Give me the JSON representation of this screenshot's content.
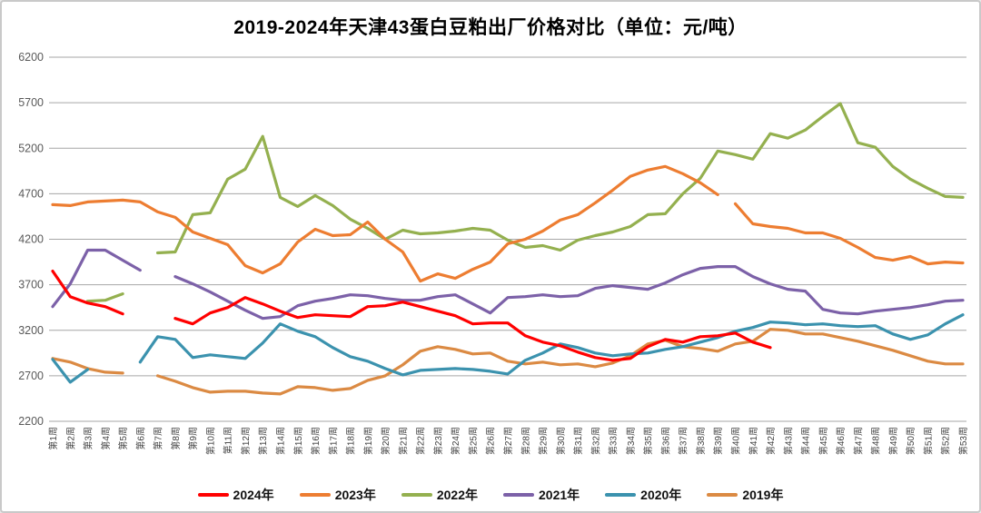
{
  "title": "2019-2024年天津43蛋白豆粕出厂价格对比（单位：元/吨）",
  "chart_data": {
    "type": "line",
    "title": "2019-2024年天津43蛋白豆粕出厂价格对比（单位：元/吨）",
    "unit": "元/吨",
    "grid": "horizontal",
    "legend_position": "bottom",
    "y_axis": {
      "min": 2200,
      "max": 6200,
      "tick_step": 500,
      "ticks": [
        2200,
        2700,
        3200,
        3700,
        4200,
        4700,
        5200,
        5700,
        6200
      ]
    },
    "x_categories": [
      "第1周",
      "第2周",
      "第3周",
      "第4周",
      "第5周",
      "第6周",
      "第7周",
      "第8周",
      "第9周",
      "第10周",
      "第11周",
      "第12周",
      "第13周",
      "第14周",
      "第15周",
      "第16周",
      "第17周",
      "第18周",
      "第19周",
      "第20周",
      "第21周",
      "第22周",
      "第23周",
      "第24周",
      "第25周",
      "第26周",
      "第27周",
      "第28周",
      "第29周",
      "第30周",
      "第31周",
      "第32周",
      "第33周",
      "第34周",
      "第35周",
      "第36周",
      "第37周",
      "第38周",
      "第39周",
      "第40周",
      "第41周",
      "第42周",
      "第43周",
      "第44周",
      "第45周",
      "第46周",
      "第47周",
      "第48周",
      "第49周",
      "第50周",
      "第51周",
      "第52周",
      "第53周"
    ],
    "series": [
      {
        "name": "2024年",
        "color": "#FF0000",
        "values": [
          3850,
          3570,
          3500,
          3460,
          3380,
          null,
          null,
          3330,
          3270,
          3390,
          3450,
          3560,
          3490,
          3410,
          3340,
          3370,
          3360,
          3350,
          3460,
          3470,
          3510,
          3460,
          3410,
          3360,
          3270,
          3280,
          3280,
          3140,
          3070,
          3030,
          2960,
          2900,
          2870,
          2890,
          3020,
          3100,
          3070,
          3130,
          3140,
          3170,
          3070,
          3010,
          null,
          null,
          null,
          null,
          null,
          null,
          null,
          null,
          null,
          null,
          null
        ]
      },
      {
        "name": "2023年",
        "color": "#ED7D31",
        "break_after_week": 39,
        "values": [
          4580,
          4570,
          4610,
          4620,
          4630,
          4610,
          4500,
          4440,
          4280,
          4210,
          4140,
          3910,
          3830,
          3930,
          4170,
          4310,
          4240,
          4250,
          4390,
          4200,
          4060,
          3740,
          3820,
          3770,
          3870,
          3950,
          4150,
          4200,
          4290,
          4410,
          4470,
          4600,
          4740,
          4890,
          4960,
          5000,
          4920,
          4820,
          4690,
          4590,
          4370,
          4340,
          4320,
          4270,
          4270,
          4210,
          4110,
          4000,
          3970,
          4010,
          3930,
          3950,
          3940
        ]
      },
      {
        "name": "2022年",
        "color": "#94B04F",
        "values": [
          null,
          null,
          3520,
          3530,
          3600,
          null,
          4050,
          4060,
          4470,
          4490,
          4860,
          4970,
          5330,
          4660,
          4560,
          4680,
          4570,
          4420,
          4320,
          4200,
          4300,
          4260,
          4270,
          4290,
          4320,
          4300,
          4190,
          4110,
          4130,
          4080,
          4190,
          4240,
          4280,
          4340,
          4470,
          4480,
          4700,
          4870,
          5170,
          5130,
          5080,
          5360,
          5310,
          5400,
          5550,
          5690,
          5260,
          5210,
          5000,
          4860,
          4760,
          4670,
          4660
        ]
      },
      {
        "name": "2021年",
        "color": "#7C61A8",
        "values": [
          3460,
          3710,
          4080,
          4080,
          3970,
          3860,
          null,
          3790,
          3710,
          3620,
          3520,
          3420,
          3330,
          3350,
          3470,
          3520,
          3550,
          3590,
          3580,
          3550,
          3530,
          3530,
          3570,
          3590,
          3490,
          3390,
          3560,
          3570,
          3590,
          3570,
          3580,
          3660,
          3690,
          3670,
          3650,
          3720,
          3810,
          3880,
          3900,
          3900,
          3790,
          3710,
          3650,
          3630,
          3430,
          3390,
          3380,
          3410,
          3430,
          3450,
          3480,
          3520,
          3530
        ]
      },
      {
        "name": "2020年",
        "color": "#3B92AE",
        "values": [
          2880,
          2630,
          2770,
          null,
          null,
          2850,
          3130,
          3100,
          2900,
          2930,
          2910,
          2890,
          3060,
          3270,
          3190,
          3130,
          3010,
          2910,
          2860,
          2780,
          2710,
          2760,
          2770,
          2780,
          2770,
          2750,
          2720,
          2870,
          2950,
          3050,
          3010,
          2950,
          2920,
          2940,
          2950,
          2990,
          3020,
          3070,
          3120,
          3190,
          3230,
          3290,
          3280,
          3260,
          3270,
          3250,
          3240,
          3250,
          3160,
          3100,
          3150,
          3270,
          3370
        ]
      },
      {
        "name": "2019年",
        "color": "#DB8A43",
        "values": [
          2890,
          2850,
          2780,
          2740,
          2730,
          null,
          2700,
          2640,
          2570,
          2520,
          2530,
          2530,
          2510,
          2500,
          2580,
          2570,
          2540,
          2560,
          2650,
          2700,
          2820,
          2970,
          3020,
          2990,
          2940,
          2950,
          2860,
          2830,
          2850,
          2820,
          2830,
          2800,
          2840,
          2920,
          3050,
          3090,
          3020,
          3000,
          2970,
          3050,
          3080,
          3210,
          3200,
          3160,
          3160,
          3120,
          3080,
          3030,
          2980,
          2920,
          2860,
          2830,
          2830
        ]
      }
    ]
  }
}
